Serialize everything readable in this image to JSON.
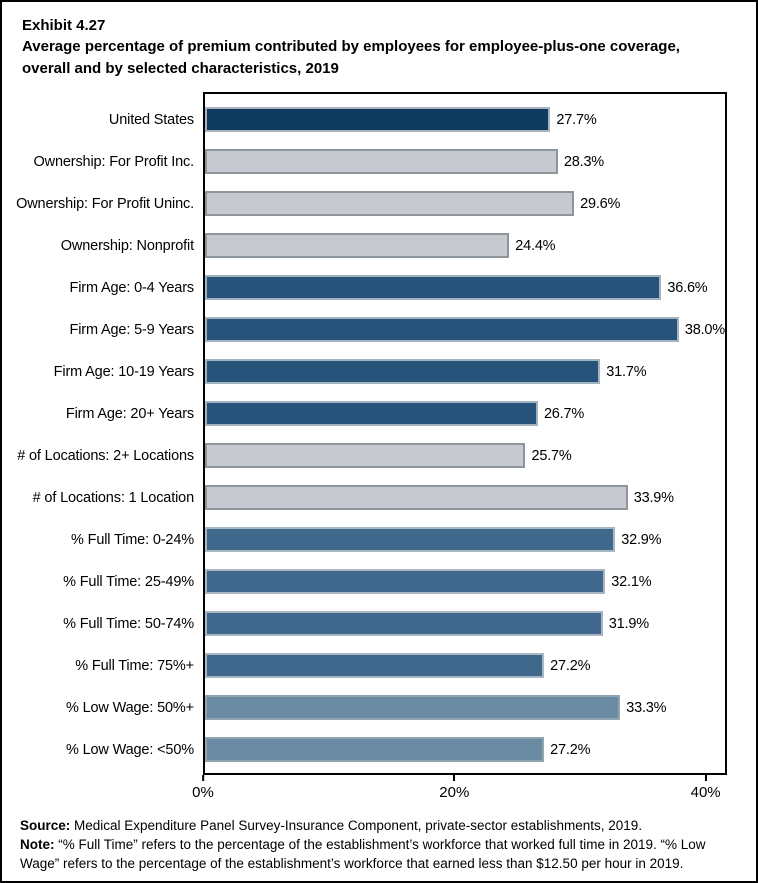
{
  "page": {
    "exhibit": "Exhibit 4.27",
    "title": "Average percentage of premium contributed by employees for employee-plus-one coverage, overall and by selected characteristics, 2019",
    "source_label": "Source:",
    "source_text": " Medical Expenditure Panel Survey-Insurance Component, private-sector establishments, 2019.",
    "note_label": "Note:",
    "note_text": " “% Full Time” refers to the percentage of the establishment’s workforce that worked full time in 2019. “% Low Wage” refers to the percentage of the establishment’s workforce that earned less than $12.50 per hour in 2019."
  },
  "chart_data": {
    "type": "bar",
    "orientation": "horizontal",
    "title": "Average percentage of premium contributed by employees for employee-plus-one coverage, overall and by selected characteristics, 2019",
    "xlabel": "",
    "ylabel": "",
    "xlim": [
      0,
      40
    ],
    "grid": false,
    "legend_position": "none",
    "value_suffix": "%",
    "x_ticks": [
      {
        "value": 0,
        "label": "0%"
      },
      {
        "value": 20,
        "label": "20%"
      },
      {
        "value": 40,
        "label": "40%"
      }
    ],
    "categories": [
      "United States",
      "Ownership: For Profit Inc.",
      "Ownership: For Profit Uninc.",
      "Ownership: Nonprofit",
      "Firm Age: 0-4 Years",
      "Firm Age: 5-9 Years",
      "Firm Age: 10-19 Years",
      "Firm Age: 20+ Years",
      "# of Locations: 2+ Locations",
      "# of Locations: 1 Location",
      "% Full Time: 0-24%",
      "% Full Time: 25-49%",
      "% Full Time: 50-74%",
      "% Full Time: 75%+",
      "% Low Wage: 50%+",
      "% Low Wage: <50%"
    ],
    "values": [
      27.7,
      28.3,
      29.6,
      24.4,
      36.6,
      38.0,
      31.7,
      26.7,
      25.7,
      33.9,
      32.9,
      32.1,
      31.9,
      27.2,
      33.3,
      27.2
    ],
    "value_labels": [
      "27.7%",
      "28.3%",
      "29.6%",
      "24.4%",
      "36.6%",
      "38.0%",
      "31.7%",
      "26.7%",
      "25.7%",
      "33.9%",
      "32.9%",
      "32.1%",
      "31.9%",
      "27.2%",
      "33.3%",
      "27.2%"
    ],
    "bar_colors": [
      "#0F3A5F",
      "#C6CAD0",
      "#C6CAD0",
      "#C6CAD0",
      "#27537B",
      "#27537B",
      "#27537B",
      "#27537B",
      "#C6CAD0",
      "#C6CAD0",
      "#40678C",
      "#40678C",
      "#40678C",
      "#40678C",
      "#6A8BA3",
      "#6A8BA3"
    ],
    "bar_border_colors": [
      "#A9B4BE",
      "#8E959B",
      "#8E959B",
      "#8E959B",
      "#A3B2BF",
      "#A3B2BF",
      "#A3B2BF",
      "#A3B2BF",
      "#8E959B",
      "#8E959B",
      "#A9B7C2",
      "#A9B7C2",
      "#A9B7C2",
      "#A9B7C2",
      "#93A4B1",
      "#93A4B1"
    ],
    "group_color_key": {
      "united_states": "#0F3A5F",
      "ownership_and_locations": "#C6CAD0",
      "firm_age": "#27537B",
      "pct_full_time": "#40678C",
      "pct_low_wage": "#6A8BA3"
    }
  }
}
